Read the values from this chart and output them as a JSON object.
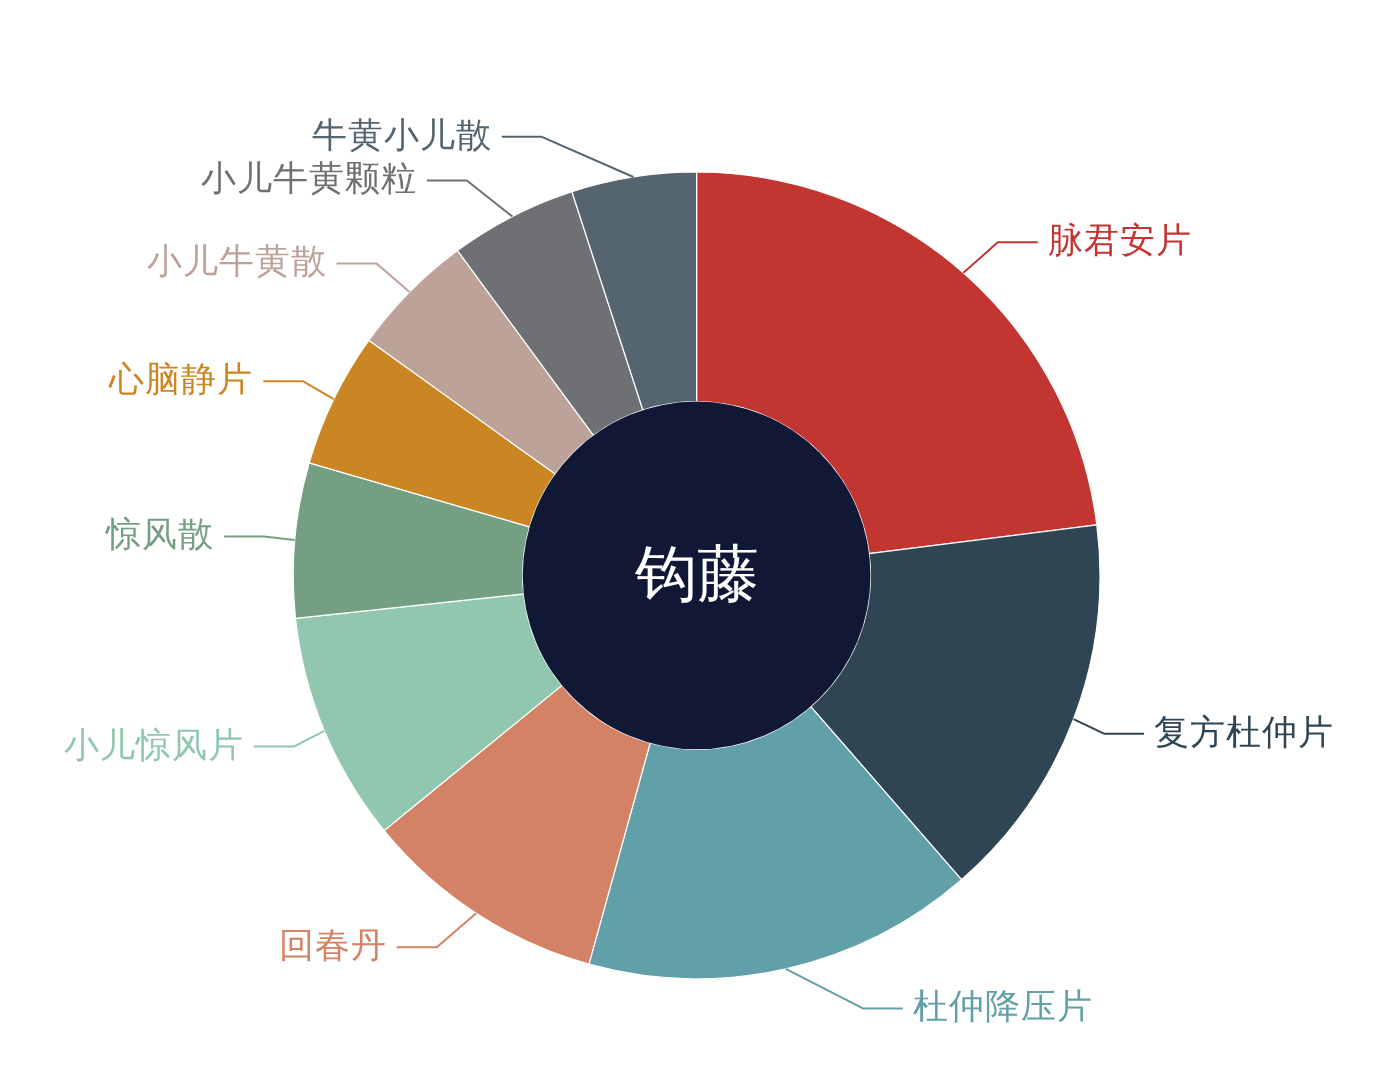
{
  "chart_data": {
    "type": "donut",
    "title": "钩藤",
    "categories": [
      "脉君安片",
      "复方杜仲片",
      "杜仲降压片",
      "回春丹",
      "小儿惊风片",
      "惊风散",
      "心脑静片",
      "小儿牛黄散",
      "小儿牛黄颗粒",
      "牛黄小儿散"
    ],
    "values": [
      23,
      15.6,
      15.7,
      9.8,
      9.2,
      6.2,
      5.4,
      5.0,
      5.1,
      5.0
    ],
    "colors": [
      "#c23531",
      "#2f4554",
      "#61a0a8",
      "#d48265",
      "#91c7ae",
      "#749f83",
      "#ca8622",
      "#bda29a",
      "#6e7074",
      "#546570"
    ]
  }
}
